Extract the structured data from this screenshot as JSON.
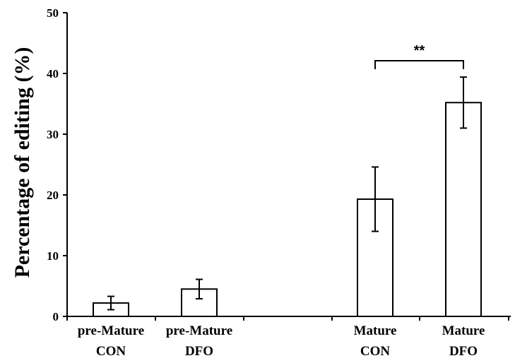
{
  "chart_data": {
    "type": "bar",
    "title": "",
    "xlabel": "",
    "ylabel": "Percentage of editing (%)",
    "ylim": [
      0,
      50
    ],
    "yticks": [
      0,
      10,
      20,
      30,
      40,
      50
    ],
    "grid": false,
    "categories": [
      {
        "line1": "pre-Mature",
        "line2": "CON"
      },
      {
        "line1": "pre-Mature",
        "line2": "DFO"
      },
      {
        "line1": "Mature",
        "line2": "CON"
      },
      {
        "line1": "Mature",
        "line2": "DFO"
      }
    ],
    "values": [
      2.2,
      4.5,
      19.3,
      35.2
    ],
    "errors": [
      1.1,
      1.6,
      5.3,
      4.2
    ],
    "bar_fill": "#ffffff",
    "bar_stroke": "#000000",
    "significance": {
      "from": 2,
      "to": 3,
      "label": "**"
    }
  }
}
